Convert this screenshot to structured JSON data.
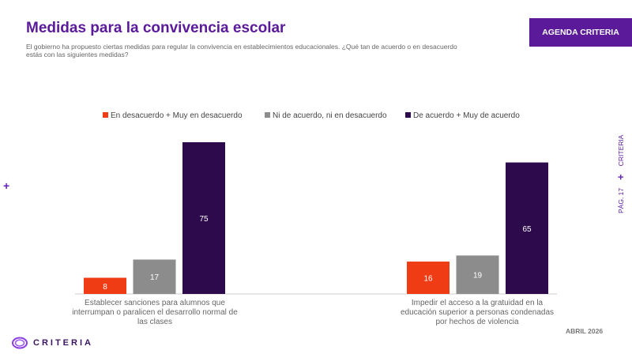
{
  "header": {
    "title": "Medidas para la convivencia escolar",
    "subtitle": "El gobierno ha propuesto ciertas medidas para regular la convivencia en establecimientos educacionales. ¿Qué tan de acuerdo o en desacuerdo estás con las siguientes medidas?",
    "badge": "AGENDA CRITERIA"
  },
  "side": {
    "page": "PÁG. 17",
    "brand": "CRITERIA"
  },
  "footer": {
    "date": "ABRIL 2026",
    "logo": "CRITERIA"
  },
  "chart_data": {
    "type": "bar",
    "categories": [
      "Establecer sanciones para alumnos que interrumpan o paralicen el desarrollo normal de las clases",
      "Impedir el acceso a la gratuidad en la educación superior a personas condenadas por hechos de violencia"
    ],
    "series": [
      {
        "name": "En desacuerdo + Muy en desacuerdo",
        "color": "#f03c14",
        "values": [
          8,
          16
        ]
      },
      {
        "name": "Ni de acuerdo, ni en desacuerdo",
        "color": "#8c8c8c",
        "values": [
          17,
          19
        ]
      },
      {
        "name": "De acuerdo + Muy de acuerdo",
        "color": "#2d0a4b",
        "values": [
          75,
          65
        ]
      }
    ],
    "legend": "top",
    "grid": false,
    "ylim": [
      0,
      100
    ]
  }
}
